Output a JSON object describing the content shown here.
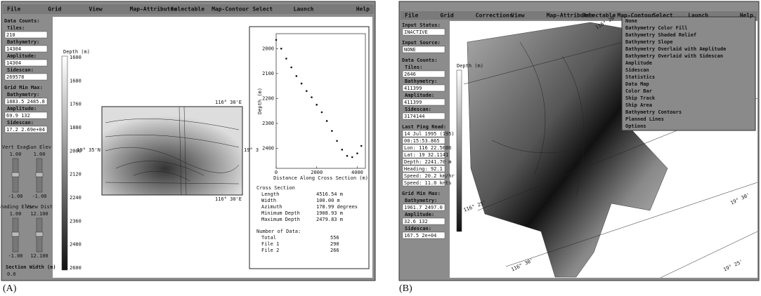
{
  "panel_a": {
    "caption": "(A)",
    "menu": [
      "File",
      "Grid",
      "View",
      "Map-Attributes",
      "Selectable",
      "Map-Contour",
      "Select",
      "Launch",
      "Help"
    ],
    "sidebar": [
      {
        "heading": "Data Counts:",
        "fields": [
          {
            "label": "Tiles:",
            "value": "210"
          },
          {
            "label": "Bathymetry:",
            "value": "14304"
          },
          {
            "label": "Amplitude:",
            "value": "14304"
          },
          {
            "label": "Sidescan:",
            "value": "269578"
          }
        ]
      },
      {
        "heading": "Grid Min Max:",
        "fields": [
          {
            "label": "Bathymetry:",
            "value": "1883.5 2485.8"
          },
          {
            "label": "Amplitude:",
            "value": "69.9 132"
          },
          {
            "label": "Sidescan:",
            "value": "17.2 2.69e+04"
          }
        ]
      }
    ],
    "sliders": [
      {
        "label": "Vert Exag",
        "max": "1.00",
        "min": "-1.00"
      },
      {
        "label": "Sun Elev",
        "max": "1.00",
        "min": "-1.00"
      },
      {
        "label": "Shading Elev",
        "max": "1.00",
        "min": "-1.00"
      },
      {
        "label": "View Dist",
        "max": "12.100",
        "min": "12.100"
      }
    ],
    "section_width": {
      "label": "Section Width (m)",
      "value": "0.0"
    },
    "colorbar": {
      "title": "Depth (m)",
      "labels": [
        "1600",
        "1680",
        "1760",
        "1880",
        "2000",
        "2120",
        "2240",
        "2360",
        "2480",
        "2600"
      ]
    },
    "map_labels": {
      "top": "116° 30'E",
      "left": "19° 35'N",
      "right": "19° 3",
      "bottom": "116° 30'E"
    },
    "profile": {
      "xlabel": "Distance Along Cross Section (m)",
      "ylabel": "Depth (m)",
      "x": [
        0,
        250,
        500,
        750,
        1000,
        1250,
        1500,
        1750,
        2000,
        2250,
        2500,
        2750,
        3000,
        3250,
        3500,
        3750,
        4000,
        4200
      ],
      "values": [
        1965,
        2000,
        2040,
        2075,
        2110,
        2140,
        2170,
        2195,
        2225,
        2255,
        2290,
        2330,
        2370,
        2405,
        2430,
        2435,
        2420,
        2390
      ],
      "xlim": [
        0,
        4400
      ],
      "ylim": [
        1940,
        2480
      ],
      "xticks": [
        0,
        2000,
        4000
      ],
      "yticks": [
        2000,
        2100,
        2200,
        2300,
        2400
      ]
    },
    "stats": {
      "title": "Cross Section",
      "rows": [
        {
          "label": "Length",
          "value": "4516.54 m"
        },
        {
          "label": "Width",
          "value": "100.00 m"
        },
        {
          "label": "Azimuth",
          "value": "178.99 degrees"
        },
        {
          "label": "Minimum Depth",
          "value": "1908.93 m"
        },
        {
          "label": "Maximum Depth",
          "value": "2479.83 m"
        }
      ],
      "count_title": "Number of Data:",
      "counts": [
        {
          "label": "Total",
          "value": "556"
        },
        {
          "label": "File 1",
          "value": "290"
        },
        {
          "label": "File 2",
          "value": "266"
        }
      ]
    }
  },
  "panel_b": {
    "caption": "(B)",
    "menu": [
      "File",
      "Grid",
      "Corrections",
      "View",
      "Map-Attributes",
      "Selectable",
      "Map-Contour",
      "Select",
      "Launch",
      "Help"
    ],
    "sidebar": [
      {
        "heading": "Input Status:",
        "fields": [
          {
            "value": "INACTIVE"
          }
        ]
      },
      {
        "heading": "Input Source:",
        "fields": [
          {
            "value": "NONE"
          }
        ]
      },
      {
        "heading": "Data Counts:",
        "fields": [
          {
            "label": "Tiles:",
            "value": "2646"
          },
          {
            "label": "Bathymetry:",
            "value": "411399"
          },
          {
            "label": "Amplitude:",
            "value": "411399"
          },
          {
            "label": "Sidescan:",
            "value": "3174144"
          }
        ]
      },
      {
        "heading": "Last Ping Read:",
        "fields": [
          {
            "value": "14 Jul 1995 (195)"
          },
          {
            "value": "00:15:53.865"
          },
          {
            "value": "Lon: 116 22.5606"
          },
          {
            "value": "Lat: 19 32.1141"
          },
          {
            "value": "Depth: 2241.70 m"
          },
          {
            "value": "Heading: 92.1"
          },
          {
            "value": "Speed: 20.2 km/hr"
          },
          {
            "value": "Speed: 11.0 knts"
          }
        ]
      },
      {
        "heading": "Grid Min Max:",
        "fields": [
          {
            "label": "Bathymetry:",
            "value": "1961.7 2497.0"
          },
          {
            "label": "Amplitude:",
            "value": "32.6 132"
          },
          {
            "label": "Sidescan:",
            "value": "167.5 2e+04"
          }
        ]
      }
    ],
    "dropdown": [
      "None",
      "Bathymetry Color Fill",
      "Bathymetry Shaded Relief",
      "Bathymetry Slope",
      "Bathymetry Overlaid with Amplitude",
      "Bathymetry Overlaid with Sidescan",
      "Amplitude",
      "Sidescan",
      "Statistics",
      "Data Map",
      "Color Bar",
      "Ship Track",
      "Ship Area",
      "Bathymetry Contours",
      "Planned Lines",
      "Options"
    ],
    "colorbar_title": "Depth (m)",
    "map_labels": [
      "116° 20'",
      "116° 25'",
      "116° 30'",
      "19° 30'",
      "19° 25'"
    ]
  }
}
